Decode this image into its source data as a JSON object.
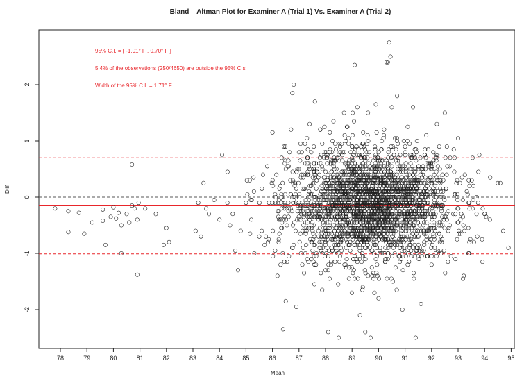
{
  "chart_data": {
    "type": "scatter",
    "title": "Bland – Altman Plot for Examiner A (Trial 1) Vs. Examiner A (Trial 2)",
    "xlabel": "Mean",
    "ylabel": "Diff",
    "xlim": [
      77.4,
      95.0
    ],
    "ylim": [
      -2.6,
      2.9
    ],
    "x_ticks": [
      "78",
      "79",
      "80",
      "81",
      "82",
      "83",
      "84",
      "85",
      "86",
      "87",
      "88",
      "89",
      "90",
      "91",
      "92",
      "93",
      "94",
      "95"
    ],
    "y_ticks": [
      "-2",
      "-1",
      "0",
      "1",
      "2"
    ],
    "reference_lines": [
      {
        "value": 0.7,
        "style": "dashed",
        "color": "#e8262b"
      },
      {
        "value": 0.0,
        "style": "dashed",
        "color": "#555555"
      },
      {
        "value": -0.155,
        "style": "solid",
        "color": "#e8262b"
      },
      {
        "value": -1.01,
        "style": "dashed",
        "color": "#e8262b"
      }
    ],
    "annotations": [
      "95% C.I. = [ -1.01° F , 0.70° F ]",
      "5.4% of the observations (250/4650) are outside the 95% CIs",
      "Width of the 95% C.I. = 1.71° F"
    ],
    "points": [
      [
        77.8,
        -0.2
      ],
      [
        78.3,
        -0.25
      ],
      [
        78.3,
        -0.62
      ],
      [
        78.7,
        -0.28
      ],
      [
        78.9,
        -0.65
      ],
      [
        79.2,
        -0.45
      ],
      [
        79.6,
        -0.22
      ],
      [
        79.6,
        -0.42
      ],
      [
        79.7,
        -0.85
      ],
      [
        79.9,
        -0.35
      ],
      [
        80.0,
        -0.18
      ],
      [
        80.1,
        -0.38
      ],
      [
        80.2,
        -0.28
      ],
      [
        80.3,
        -0.5
      ],
      [
        80.3,
        -1.0
      ],
      [
        80.5,
        -0.3
      ],
      [
        80.6,
        -0.45
      ],
      [
        80.7,
        -0.15
      ],
      [
        80.7,
        0.58
      ],
      [
        80.8,
        -0.2
      ],
      [
        80.9,
        -0.4
      ],
      [
        80.95,
        -0.1
      ],
      [
        80.9,
        -1.38
      ],
      [
        81.2,
        -0.2
      ],
      [
        81.6,
        -0.3
      ],
      [
        81.9,
        -0.85
      ],
      [
        82.0,
        -0.55
      ],
      [
        82.1,
        -0.8
      ],
      [
        83.1,
        -0.6
      ],
      [
        83.2,
        -0.1
      ],
      [
        83.3,
        -0.7
      ],
      [
        83.4,
        0.25
      ],
      [
        83.5,
        -0.2
      ],
      [
        83.6,
        -0.3
      ],
      [
        83.8,
        -0.05
      ],
      [
        84.0,
        -0.4
      ],
      [
        84.1,
        0.75
      ],
      [
        84.3,
        -0.1
      ],
      [
        84.4,
        -0.5
      ],
      [
        84.5,
        -0.3
      ],
      [
        84.6,
        -0.95
      ],
      [
        84.7,
        -1.3
      ],
      [
        84.8,
        -0.6
      ],
      [
        85.0,
        -0.1
      ],
      [
        85.2,
        -0.4
      ],
      [
        85.3,
        0.1
      ],
      [
        85.5,
        -0.7
      ],
      [
        85.6,
        0.15
      ],
      [
        85.7,
        -0.85
      ],
      [
        85.8,
        0.55
      ],
      [
        86.0,
        1.15
      ],
      [
        86.1,
        -0.95
      ],
      [
        86.2,
        -0.25
      ],
      [
        86.3,
        0.2
      ],
      [
        86.4,
        -2.35
      ],
      [
        86.5,
        -1.85
      ],
      [
        86.6,
        0.65
      ],
      [
        86.7,
        1.2
      ],
      [
        86.75,
        1.85
      ],
      [
        86.8,
        2.0
      ],
      [
        86.9,
        -1.95
      ],
      [
        87.0,
        0.8
      ],
      [
        87.3,
        1.05
      ],
      [
        87.6,
        1.7
      ],
      [
        87.8,
        1.2
      ],
      [
        88.0,
        -1.3
      ],
      [
        88.1,
        -2.4
      ],
      [
        88.3,
        1.35
      ],
      [
        88.5,
        -2.5
      ],
      [
        88.7,
        1.5
      ],
      [
        88.8,
        -1.1
      ],
      [
        89.1,
        2.35
      ],
      [
        89.2,
        1.6
      ],
      [
        89.3,
        -2.1
      ],
      [
        89.5,
        -2.4
      ],
      [
        89.6,
        1.5
      ],
      [
        89.7,
        -2.5
      ],
      [
        89.9,
        1.65
      ],
      [
        90.0,
        -1.8
      ],
      [
        90.2,
        1.1
      ],
      [
        90.3,
        2.4
      ],
      [
        90.35,
        2.4
      ],
      [
        90.4,
        2.75
      ],
      [
        90.45,
        2.5
      ],
      [
        90.5,
        1.6
      ],
      [
        90.7,
        1.8
      ],
      [
        90.9,
        -2.0
      ],
      [
        91.1,
        1.25
      ],
      [
        91.3,
        1.6
      ],
      [
        91.4,
        -2.5
      ],
      [
        91.6,
        -1.9
      ],
      [
        91.8,
        1.1
      ],
      [
        92.0,
        -1.2
      ],
      [
        92.2,
        1.3
      ],
      [
        92.5,
        1.5
      ],
      [
        92.7,
        0.7
      ],
      [
        92.9,
        -1.1
      ],
      [
        93.0,
        1.05
      ],
      [
        93.2,
        -0.5
      ],
      [
        93.4,
        0.3
      ],
      [
        93.6,
        -0.8
      ],
      [
        93.8,
        0.75
      ],
      [
        94.0,
        -0.3
      ],
      [
        94.2,
        -0.4
      ],
      [
        94.5,
        0.25
      ],
      [
        94.7,
        -0.6
      ],
      [
        94.9,
        -0.9
      ]
    ],
    "dense_cloud": {
      "description_free": true,
      "count": 2600,
      "x_center": 89.7,
      "x_sd": 1.55,
      "y_center": -0.15,
      "y_sd": 0.5,
      "x_min": 84.3,
      "x_max": 94.6
    },
    "grid": false,
    "legend": "none",
    "colors": {
      "points": "#222222",
      "annotation": "#e8262b",
      "axis": "#222222"
    }
  }
}
